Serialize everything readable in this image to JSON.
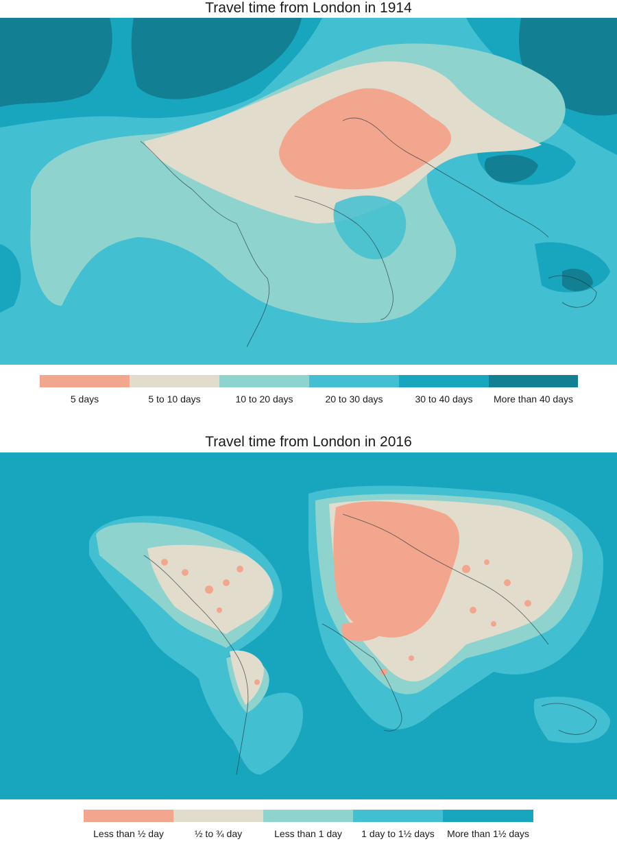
{
  "maps": [
    {
      "title": "Travel time from London in 1914",
      "legend": [
        {
          "label": "5 days",
          "color": "#f2a68e"
        },
        {
          "label": "5 to 10 days",
          "color": "#e2dccd"
        },
        {
          "label": "10 to 20 days",
          "color": "#8ed3ce"
        },
        {
          "label": "20 to 30 days",
          "color": "#42bfd0"
        },
        {
          "label": "30 to 40 days",
          "color": "#17a6be"
        },
        {
          "label": "More than 40 days",
          "color": "#137f92"
        }
      ]
    },
    {
      "title": "Travel time from London in 2016",
      "legend": [
        {
          "label": "Less than ½ day",
          "color": "#f2a68e"
        },
        {
          "label": "½ to ¾ day",
          "color": "#e2dccd"
        },
        {
          "label": "Less than 1 day",
          "color": "#8ed3ce"
        },
        {
          "label": "1 day to 1½ days",
          "color": "#42bfd0"
        },
        {
          "label": "More than 1½ days",
          "color": "#17a6be"
        }
      ]
    }
  ]
}
